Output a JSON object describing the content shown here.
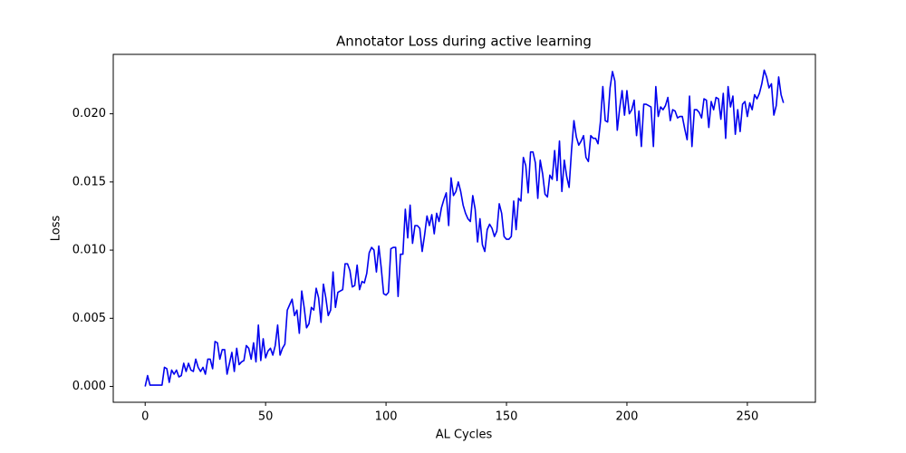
{
  "chart_data": {
    "type": "line",
    "title": "Annotator Loss during active learning",
    "xlabel": "AL Cycles",
    "ylabel": "Loss",
    "x": [
      0,
      1,
      2,
      3,
      4,
      5,
      6,
      7,
      8,
      9,
      10,
      11,
      12,
      13,
      14,
      15,
      16,
      17,
      18,
      19,
      20,
      21,
      22,
      23,
      24,
      25,
      26,
      27,
      28,
      29,
      30,
      31,
      32,
      33,
      34,
      35,
      36,
      37,
      38,
      39,
      40,
      41,
      42,
      43,
      44,
      45,
      46,
      47,
      48,
      49,
      50,
      51,
      52,
      53,
      54,
      55,
      56,
      57,
      58,
      59,
      60,
      61,
      62,
      63,
      64,
      65,
      66,
      67,
      68,
      69,
      70,
      71,
      72,
      73,
      74,
      75,
      76,
      77,
      78,
      79,
      80,
      81,
      82,
      83,
      84,
      85,
      86,
      87,
      88,
      89,
      90,
      91,
      92,
      93,
      94,
      95,
      96,
      97,
      98,
      99,
      100,
      101,
      102,
      103,
      104,
      105,
      106,
      107,
      108,
      109,
      110,
      111,
      112,
      113,
      114,
      115,
      116,
      117,
      118,
      119,
      120,
      121,
      122,
      123,
      124,
      125,
      126,
      127,
      128,
      129,
      130,
      131,
      132,
      133,
      134,
      135,
      136,
      137,
      138,
      139,
      140,
      141,
      142,
      143,
      144,
      145,
      146,
      147,
      148,
      149,
      150,
      151,
      152,
      153,
      154,
      155,
      156,
      157,
      158,
      159,
      160,
      161,
      162,
      163,
      164,
      165,
      166,
      167,
      168,
      169,
      170,
      171,
      172,
      173,
      174,
      175,
      176,
      177,
      178,
      179,
      180,
      181,
      182,
      183,
      184,
      185,
      186,
      187,
      188,
      189,
      190,
      191,
      192,
      193,
      194,
      195,
      196,
      197,
      198,
      199,
      200,
      201,
      202,
      203,
      204,
      205,
      206,
      207,
      208,
      209,
      210,
      211,
      212,
      213,
      214,
      215,
      216,
      217,
      218,
      219,
      220,
      221,
      222,
      223,
      224,
      225,
      226,
      227,
      228,
      229,
      230,
      231,
      232,
      233,
      234,
      235,
      236,
      237,
      238,
      239,
      240,
      241,
      242,
      243,
      244,
      245,
      246,
      247,
      248,
      249,
      250,
      251,
      252,
      253,
      254,
      255,
      256,
      257,
      258,
      259,
      260,
      261,
      262,
      263,
      264,
      265
    ],
    "series": [
      {
        "color": "#0000ee",
        "values": [
          0.0,
          0.0008,
          0.0001,
          0.0001,
          0.0001,
          0.0001,
          0.0001,
          0.0001,
          0.0014,
          0.0013,
          0.0003,
          0.0012,
          0.0009,
          0.0012,
          0.0007,
          0.0008,
          0.0017,
          0.0011,
          0.0017,
          0.0012,
          0.0011,
          0.002,
          0.0014,
          0.0011,
          0.0014,
          0.0009,
          0.002,
          0.002,
          0.0013,
          0.0033,
          0.0032,
          0.002,
          0.0027,
          0.0027,
          0.0009,
          0.0017,
          0.0025,
          0.0011,
          0.0028,
          0.0016,
          0.0018,
          0.0019,
          0.003,
          0.0028,
          0.002,
          0.0032,
          0.0018,
          0.0045,
          0.0019,
          0.0035,
          0.0021,
          0.0026,
          0.0028,
          0.0023,
          0.003,
          0.0045,
          0.0023,
          0.0028,
          0.0031,
          0.0056,
          0.006,
          0.0064,
          0.0052,
          0.0056,
          0.0039,
          0.007,
          0.0058,
          0.0043,
          0.0046,
          0.0058,
          0.0056,
          0.0072,
          0.0065,
          0.0047,
          0.0075,
          0.0065,
          0.0052,
          0.0056,
          0.0084,
          0.0058,
          0.0069,
          0.007,
          0.0071,
          0.009,
          0.009,
          0.0085,
          0.0073,
          0.0074,
          0.0089,
          0.0071,
          0.0077,
          0.0076,
          0.0083,
          0.0098,
          0.0102,
          0.01,
          0.0084,
          0.0103,
          0.0087,
          0.0068,
          0.0067,
          0.0069,
          0.0101,
          0.0102,
          0.0102,
          0.0066,
          0.0097,
          0.0097,
          0.013,
          0.0109,
          0.0133,
          0.0105,
          0.0118,
          0.0118,
          0.0116,
          0.0099,
          0.0111,
          0.0125,
          0.0118,
          0.0126,
          0.0112,
          0.0127,
          0.0121,
          0.0131,
          0.0137,
          0.0142,
          0.0118,
          0.0153,
          0.014,
          0.0143,
          0.015,
          0.0143,
          0.0133,
          0.0127,
          0.0123,
          0.0121,
          0.014,
          0.013,
          0.0106,
          0.0123,
          0.0104,
          0.0099,
          0.0115,
          0.0119,
          0.0116,
          0.011,
          0.0114,
          0.0134,
          0.0127,
          0.011,
          0.0108,
          0.0108,
          0.011,
          0.0136,
          0.0115,
          0.0138,
          0.0136,
          0.0168,
          0.0162,
          0.0142,
          0.0172,
          0.0172,
          0.0164,
          0.0138,
          0.0166,
          0.0156,
          0.0141,
          0.0139,
          0.0155,
          0.0152,
          0.0173,
          0.0151,
          0.018,
          0.0143,
          0.0166,
          0.0154,
          0.0146,
          0.0173,
          0.0195,
          0.0183,
          0.0177,
          0.018,
          0.0184,
          0.0168,
          0.0165,
          0.0184,
          0.0182,
          0.0182,
          0.0178,
          0.0194,
          0.022,
          0.0195,
          0.0194,
          0.0219,
          0.0231,
          0.0224,
          0.0188,
          0.0204,
          0.0217,
          0.0199,
          0.0217,
          0.02,
          0.0203,
          0.021,
          0.0184,
          0.0202,
          0.0176,
          0.0207,
          0.0207,
          0.0206,
          0.0205,
          0.0176,
          0.022,
          0.0198,
          0.0205,
          0.0203,
          0.0206,
          0.0212,
          0.0195,
          0.0203,
          0.0202,
          0.0197,
          0.0198,
          0.0198,
          0.0189,
          0.0181,
          0.0213,
          0.0176,
          0.0203,
          0.0203,
          0.0201,
          0.0197,
          0.0211,
          0.021,
          0.019,
          0.0209,
          0.0203,
          0.0212,
          0.0211,
          0.0196,
          0.0215,
          0.0182,
          0.022,
          0.0205,
          0.0213,
          0.0185,
          0.0203,
          0.0187,
          0.0207,
          0.0209,
          0.0198,
          0.0208,
          0.0203,
          0.0214,
          0.0211,
          0.0215,
          0.0222,
          0.0232,
          0.0227,
          0.0219,
          0.0222,
          0.0199,
          0.0206,
          0.0227,
          0.0214,
          0.0208
        ]
      }
    ],
    "xlim": [
      -13.25,
      278.25
    ],
    "ylim": [
      -0.00116,
      0.02436
    ],
    "xticks": [
      0,
      50,
      100,
      150,
      200,
      250
    ],
    "yticks": [
      {
        "value": 0,
        "label": "0.000"
      },
      {
        "value": 0.005,
        "label": "0.005"
      },
      {
        "value": 0.01,
        "label": "0.010"
      },
      {
        "value": 0.015,
        "label": "0.015"
      },
      {
        "value": 0.02,
        "label": "0.020"
      }
    ],
    "grid": false
  }
}
